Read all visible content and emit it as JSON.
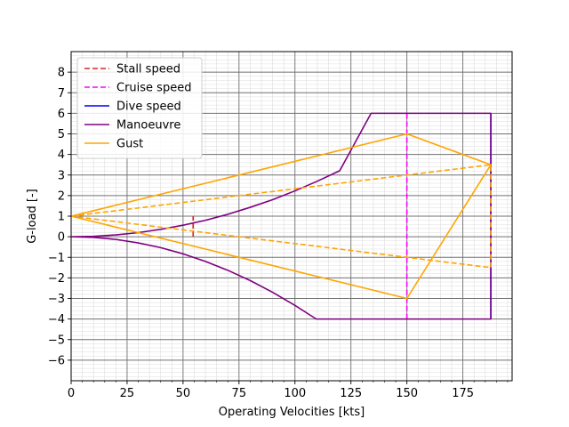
{
  "chart_data": {
    "type": "line",
    "title": "",
    "xlabel": "Operating Velocities [kts]",
    "ylabel": "G-load [-]",
    "xlim": [
      0,
      197
    ],
    "ylim": [
      -7,
      9
    ],
    "x_ticks": [
      0,
      25,
      50,
      75,
      100,
      125,
      150,
      175
    ],
    "x_tick_labels": [
      "0",
      "25",
      "50",
      "75",
      "100",
      "125",
      "150",
      "175"
    ],
    "y_ticks": [
      -6,
      -5,
      -4,
      -3,
      -2,
      -1,
      0,
      1,
      2,
      3,
      4,
      5,
      6,
      7,
      8
    ],
    "y_tick_labels": [
      "−6",
      "−5",
      "−4",
      "−3",
      "−2",
      "−1",
      "0",
      "1",
      "2",
      "3",
      "4",
      "5",
      "6",
      "7",
      "8"
    ],
    "grid": {
      "major": true,
      "minor": true
    },
    "legend_position": "top-left",
    "legend": [
      {
        "label": "Stall speed",
        "color": "#d62728",
        "style": "dashed"
      },
      {
        "label": "Cruise speed",
        "color": "#ff00ff",
        "style": "dashed"
      },
      {
        "label": "Dive speed",
        "color": "#0000ff",
        "style": "solid"
      },
      {
        "label": "Manoeuvre",
        "color": "#800080",
        "style": "solid"
      },
      {
        "label": "Gust",
        "color": "#ffa500",
        "style": "solid"
      }
    ],
    "series": [
      {
        "name": "Stall speed",
        "color": "#d62728",
        "style": "dashed",
        "x": [
          54.5,
          54.5
        ],
        "y": [
          0,
          1
        ]
      },
      {
        "name": "Cruise speed",
        "color": "#ff00ff",
        "style": "dashed",
        "x": [
          150,
          150
        ],
        "y": [
          -4,
          6
        ]
      },
      {
        "name": "Dive speed",
        "color": "#0000ff",
        "style": "solid",
        "x": [
          187.5,
          187.5
        ],
        "y": [
          -4,
          6
        ]
      },
      {
        "name": "Manoeuvre",
        "color": "#800080",
        "style": "solid",
        "x": [
          0,
          10,
          20,
          30,
          40,
          50,
          60,
          70,
          80,
          90,
          100,
          110,
          120,
          134,
          187.5,
          187.5,
          109.5,
          100,
          90,
          80,
          70,
          60,
          50,
          40,
          30,
          20,
          10,
          0
        ],
        "y": [
          0,
          0.02,
          0.09,
          0.2,
          0.36,
          0.56,
          0.8,
          1.09,
          1.43,
          1.8,
          2.23,
          2.7,
          3.21,
          6,
          6,
          -4,
          -4,
          -3.34,
          -2.7,
          -2.13,
          -1.63,
          -1.2,
          -0.83,
          -0.53,
          -0.3,
          -0.13,
          -0.03,
          0
        ],
        "note_shape": "manoeuvre envelope"
      },
      {
        "name": "Gust",
        "color": "#ffa500",
        "style": "solid",
        "x": [
          0,
          150,
          187.5,
          150,
          0
        ],
        "y": [
          1,
          5,
          3.5,
          -3,
          1
        ]
      },
      {
        "name": "Gust (dive)",
        "color": "#ffa500",
        "style": "dashed",
        "x": [
          0,
          187.5,
          187.5,
          0
        ],
        "y": [
          1,
          3.5,
          -1.5,
          1
        ]
      }
    ]
  }
}
